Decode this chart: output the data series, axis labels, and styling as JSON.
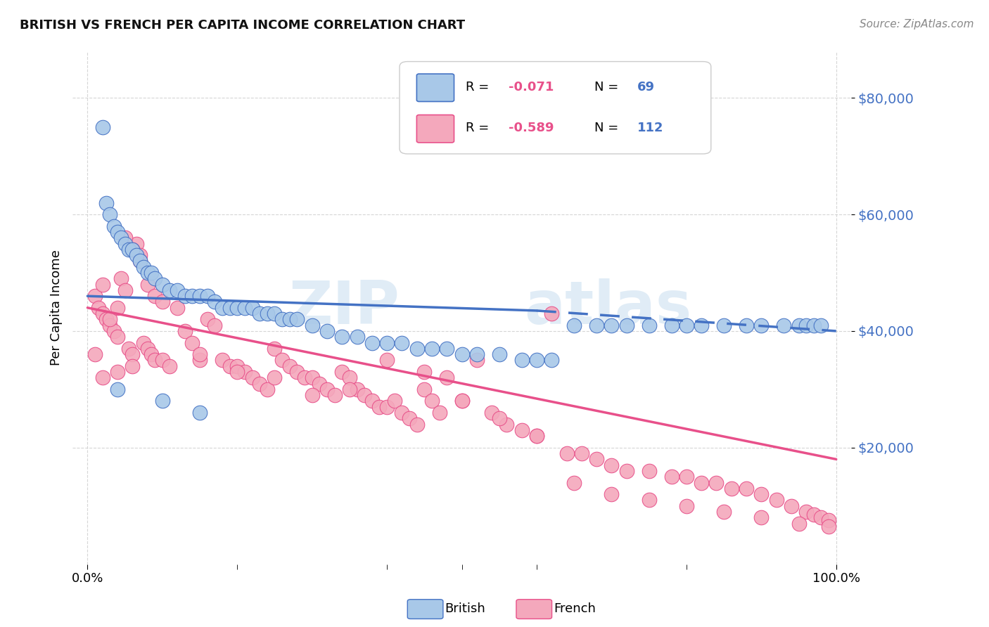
{
  "title": "BRITISH VS FRENCH PER CAPITA INCOME CORRELATION CHART",
  "source": "Source: ZipAtlas.com",
  "ylabel": "Per Capita Income",
  "y_tick_values": [
    20000,
    40000,
    60000,
    80000
  ],
  "watermark_zip": "ZIP",
  "watermark_atlas": "atlas",
  "british_color": "#a8c8e8",
  "french_color": "#f4a8bc",
  "british_line_color": "#4472c4",
  "french_line_color": "#e8508a",
  "title_color": "#111111",
  "axis_label_color": "#4472c4",
  "legend_R_color": "#e8508a",
  "legend_N_color": "#4472c4",
  "british_scatter_x": [
    0.02,
    0.025,
    0.03,
    0.035,
    0.04,
    0.045,
    0.05,
    0.055,
    0.06,
    0.065,
    0.07,
    0.075,
    0.08,
    0.085,
    0.09,
    0.1,
    0.11,
    0.12,
    0.13,
    0.14,
    0.15,
    0.16,
    0.17,
    0.18,
    0.19,
    0.2,
    0.21,
    0.22,
    0.23,
    0.24,
    0.25,
    0.26,
    0.27,
    0.28,
    0.3,
    0.32,
    0.34,
    0.36,
    0.38,
    0.4,
    0.42,
    0.44,
    0.46,
    0.48,
    0.5,
    0.52,
    0.55,
    0.58,
    0.6,
    0.62,
    0.65,
    0.68,
    0.7,
    0.72,
    0.75,
    0.78,
    0.8,
    0.82,
    0.85,
    0.88,
    0.9,
    0.93,
    0.95,
    0.96,
    0.97,
    0.98,
    0.04,
    0.1,
    0.15
  ],
  "british_scatter_y": [
    75000,
    62000,
    60000,
    58000,
    57000,
    56000,
    55000,
    54000,
    54000,
    53000,
    52000,
    51000,
    50000,
    50000,
    49000,
    48000,
    47000,
    47000,
    46000,
    46000,
    46000,
    46000,
    45000,
    44000,
    44000,
    44000,
    44000,
    44000,
    43000,
    43000,
    43000,
    42000,
    42000,
    42000,
    41000,
    40000,
    39000,
    39000,
    38000,
    38000,
    38000,
    37000,
    37000,
    37000,
    36000,
    36000,
    36000,
    35000,
    35000,
    35000,
    41000,
    41000,
    41000,
    41000,
    41000,
    41000,
    41000,
    41000,
    41000,
    41000,
    41000,
    41000,
    41000,
    41000,
    41000,
    41000,
    30000,
    28000,
    26000
  ],
  "french_scatter_x": [
    0.01,
    0.015,
    0.02,
    0.025,
    0.03,
    0.035,
    0.04,
    0.045,
    0.05,
    0.055,
    0.06,
    0.065,
    0.07,
    0.075,
    0.08,
    0.085,
    0.09,
    0.1,
    0.11,
    0.12,
    0.13,
    0.14,
    0.15,
    0.16,
    0.17,
    0.18,
    0.19,
    0.2,
    0.21,
    0.22,
    0.23,
    0.24,
    0.25,
    0.26,
    0.27,
    0.28,
    0.29,
    0.3,
    0.31,
    0.32,
    0.33,
    0.34,
    0.35,
    0.36,
    0.37,
    0.38,
    0.39,
    0.4,
    0.41,
    0.42,
    0.43,
    0.44,
    0.45,
    0.46,
    0.47,
    0.48,
    0.5,
    0.52,
    0.54,
    0.56,
    0.58,
    0.6,
    0.62,
    0.64,
    0.66,
    0.68,
    0.7,
    0.72,
    0.75,
    0.78,
    0.8,
    0.82,
    0.84,
    0.86,
    0.88,
    0.9,
    0.92,
    0.94,
    0.96,
    0.97,
    0.98,
    0.99,
    0.01,
    0.02,
    0.03,
    0.04,
    0.05,
    0.06,
    0.07,
    0.08,
    0.09,
    0.1,
    0.15,
    0.2,
    0.25,
    0.3,
    0.35,
    0.4,
    0.45,
    0.5,
    0.55,
    0.6,
    0.65,
    0.7,
    0.75,
    0.8,
    0.85,
    0.9,
    0.95,
    0.99,
    0.02,
    0.04,
    0.06
  ],
  "french_scatter_y": [
    46000,
    44000,
    43000,
    42000,
    41000,
    40000,
    39000,
    49000,
    47000,
    37000,
    36000,
    55000,
    53000,
    38000,
    37000,
    36000,
    35000,
    35000,
    34000,
    44000,
    40000,
    38000,
    35000,
    42000,
    41000,
    35000,
    34000,
    34000,
    33000,
    32000,
    31000,
    30000,
    37000,
    35000,
    34000,
    33000,
    32000,
    32000,
    31000,
    30000,
    29000,
    33000,
    32000,
    30000,
    29000,
    28000,
    27000,
    27000,
    28000,
    26000,
    25000,
    24000,
    30000,
    28000,
    26000,
    32000,
    28000,
    35000,
    26000,
    24000,
    23000,
    22000,
    43000,
    19000,
    19000,
    18000,
    17000,
    16000,
    16000,
    15000,
    15000,
    14000,
    14000,
    13000,
    13000,
    12000,
    11000,
    10000,
    9000,
    8500,
    8000,
    7500,
    36000,
    48000,
    42000,
    44000,
    56000,
    54000,
    52000,
    48000,
    46000,
    45000,
    36000,
    33000,
    32000,
    29000,
    30000,
    35000,
    33000,
    28000,
    25000,
    22000,
    14000,
    12000,
    11000,
    10000,
    9000,
    8000,
    7000,
    6500,
    32000,
    33000,
    34000
  ],
  "british_trend_x": [
    0.0,
    0.6,
    1.0
  ],
  "british_trend_y": [
    46000,
    43500,
    40000
  ],
  "british_trend_solid_end": 0.6,
  "french_trend_x": [
    0.0,
    1.0
  ],
  "french_trend_y": [
    44000,
    18000
  ],
  "ylim": [
    0,
    88000
  ],
  "xlim": [
    -0.02,
    1.02
  ],
  "background_color": "#ffffff",
  "grid_color": "#cccccc"
}
